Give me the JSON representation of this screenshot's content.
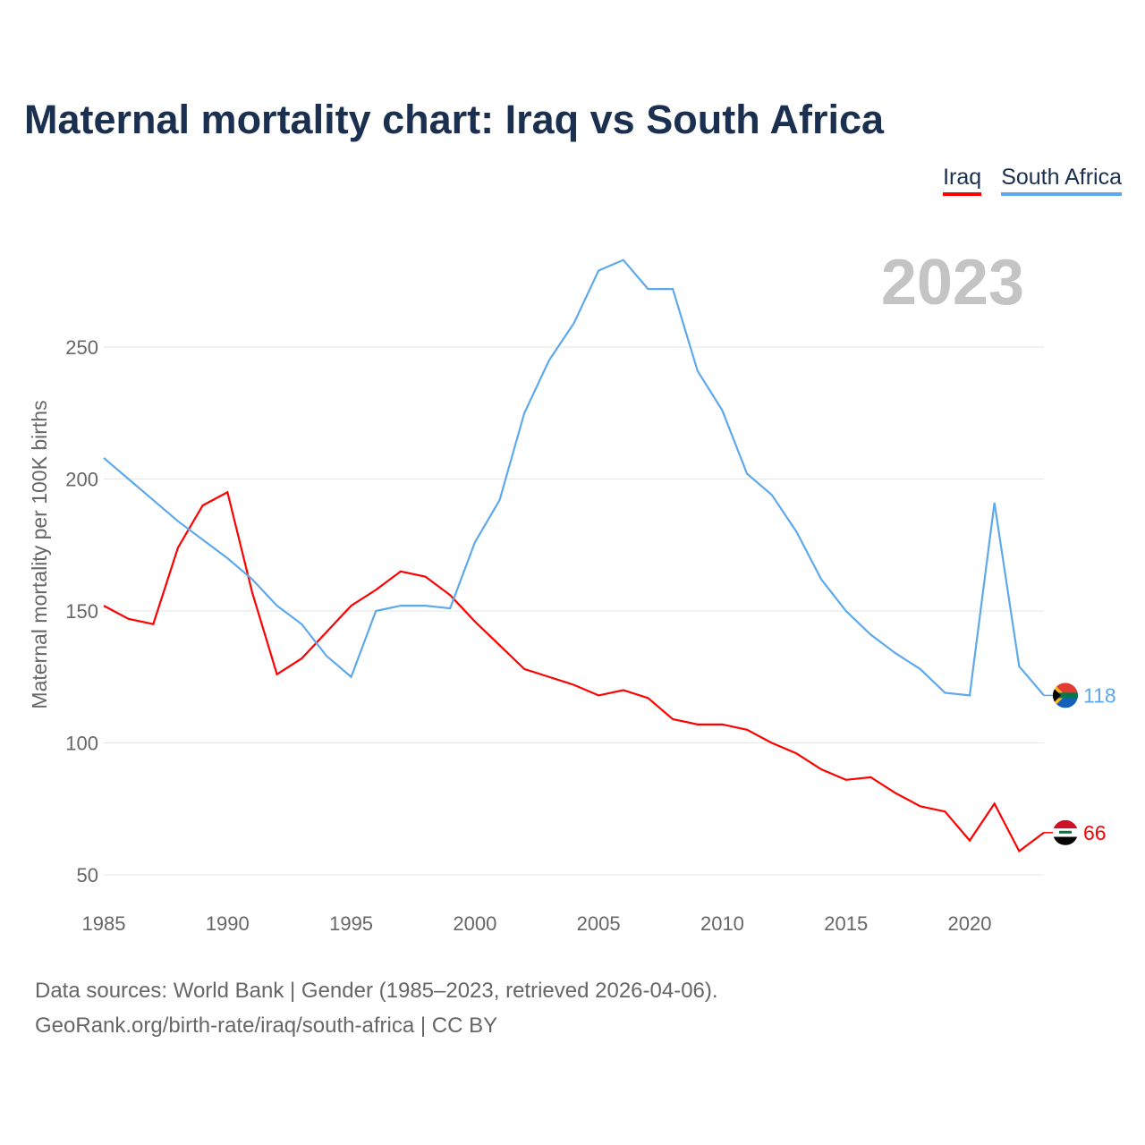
{
  "title": "Maternal mortality chart: Iraq vs South Africa",
  "footer": {
    "line1": "Data sources: World Bank | Gender (1985–2023, retrieved 2026-04-06).",
    "line2": "GeoRank.org/birth-rate/iraq/south-africa | CC BY"
  },
  "chart_data": {
    "type": "line",
    "title": "Maternal mortality chart: Iraq vs South Africa",
    "ylabel": "Maternal mortality per 100K births",
    "xlabel": "",
    "year_label": "2023",
    "xlim": [
      1985,
      2023
    ],
    "ylim": [
      50,
      250
    ],
    "xticks": [
      "1985",
      "1990",
      "1995",
      "2000",
      "2005",
      "2010",
      "2015",
      "2020"
    ],
    "yticks": [
      "50",
      "100",
      "150",
      "200",
      "250"
    ],
    "grid": true,
    "legend_placement": "top-right",
    "x": [
      1985,
      1986,
      1987,
      1988,
      1989,
      1990,
      1991,
      1992,
      1993,
      1994,
      1995,
      1996,
      1997,
      1998,
      1999,
      2000,
      2001,
      2002,
      2003,
      2004,
      2005,
      2006,
      2007,
      2008,
      2009,
      2010,
      2011,
      2012,
      2013,
      2014,
      2015,
      2016,
      2017,
      2018,
      2019,
      2020,
      2021,
      2022,
      2023
    ],
    "series": [
      {
        "name": "Iraq",
        "color": "#ff0000",
        "end_label": "66",
        "values": [
          152,
          147,
          145,
          174,
          190,
          195,
          157,
          126,
          132,
          142,
          152,
          158,
          165,
          163,
          156,
          146,
          137,
          128,
          125,
          122,
          118,
          120,
          117,
          109,
          107,
          107,
          105,
          100,
          96,
          90,
          86,
          87,
          81,
          76,
          74,
          63,
          77,
          59,
          66
        ]
      },
      {
        "name": "South Africa",
        "color": "#5ea8ec",
        "end_label": "118",
        "values": [
          208,
          200,
          192,
          184,
          177,
          170,
          162,
          152,
          145,
          133,
          125,
          150,
          152,
          152,
          151,
          176,
          192,
          225,
          245,
          259,
          279,
          283,
          272,
          272,
          241,
          226,
          202,
          194,
          180,
          162,
          150,
          141,
          134,
          128,
          119,
          118,
          191,
          129,
          118
        ]
      }
    ]
  }
}
